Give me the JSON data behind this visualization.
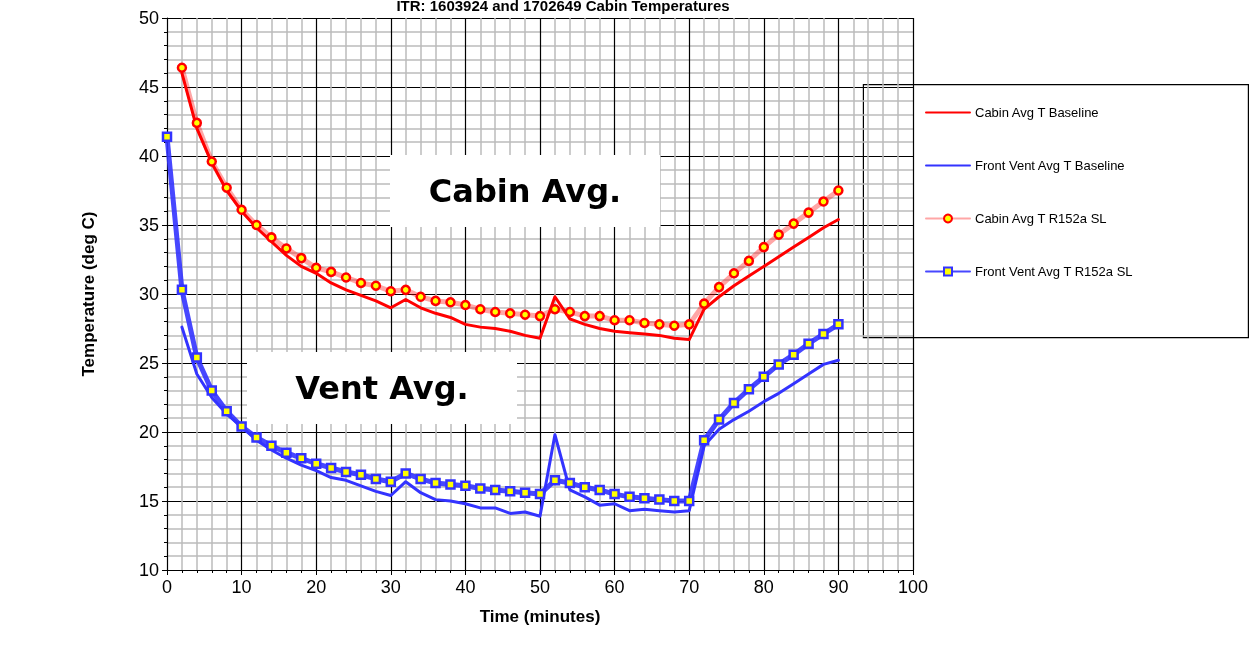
{
  "chart_data": {
    "type": "line",
    "title": "ITR: 1603924 and 1702649 Cabin Temperatures",
    "xlabel": "Time (minutes)",
    "ylabel": "Temperature (deg C)",
    "x": [
      0,
      2,
      4,
      6,
      8,
      10,
      12,
      14,
      16,
      18,
      20,
      22,
      24,
      26,
      28,
      30,
      32,
      34,
      36,
      38,
      40,
      42,
      44,
      46,
      48,
      50,
      52,
      54,
      56,
      58,
      60,
      62,
      64,
      66,
      68,
      70,
      72,
      74,
      76,
      78,
      80,
      82,
      84,
      86,
      88,
      90
    ],
    "series": [
      {
        "name": "Cabin Avg T Baseline",
        "color": "#ff0000",
        "marker": "none",
        "values": [
          null,
          46,
          42,
          39.5,
          37.5,
          36,
          34.8,
          33.8,
          32.8,
          32,
          31.5,
          30.8,
          30.3,
          29.9,
          29.5,
          29.0,
          29.6,
          29.0,
          28.6,
          28.3,
          27.8,
          27.6,
          27.5,
          27.3,
          27.0,
          26.8,
          29.8,
          28.2,
          27.8,
          27.5,
          27.3,
          27.2,
          27.1,
          27.0,
          26.8,
          26.7,
          28.9,
          29.8,
          30.6,
          31.3,
          32.0,
          32.7,
          33.4,
          34.1,
          34.8,
          35.4
        ]
      },
      {
        "name": "Front Vent Avg T Baseline",
        "color": "#3333ff",
        "marker": "none",
        "values": [
          null,
          27.6,
          24.2,
          22.5,
          21.3,
          20.4,
          19.4,
          18.7,
          18.1,
          17.6,
          17.2,
          16.7,
          16.5,
          16.1,
          15.7,
          15.4,
          16.4,
          15.6,
          15.1,
          15.0,
          14.8,
          14.5,
          14.5,
          14.1,
          14.2,
          13.9,
          19.8,
          15.8,
          15.3,
          14.7,
          14.8,
          14.3,
          14.4,
          14.3,
          14.2,
          14.3,
          19.0,
          20.2,
          20.9,
          21.5,
          22.2,
          22.8,
          23.5,
          24.2,
          24.9,
          25.2
        ]
      },
      {
        "name": "Cabin Avg T R152a SL",
        "color": "#ff0000",
        "marker": "circle",
        "values": [
          null,
          46.4,
          42.4,
          39.6,
          37.7,
          36.1,
          35.0,
          34.1,
          33.3,
          32.6,
          31.9,
          31.6,
          31.2,
          30.8,
          30.6,
          30.2,
          30.3,
          29.8,
          29.5,
          29.4,
          29.2,
          28.9,
          28.7,
          28.6,
          28.5,
          28.4,
          28.9,
          28.7,
          28.4,
          28.4,
          28.1,
          28.1,
          27.9,
          27.8,
          27.7,
          27.8,
          29.3,
          30.5,
          31.5,
          32.4,
          33.4,
          34.3,
          35.1,
          35.9,
          36.7,
          37.5
        ]
      },
      {
        "name": "Front Vent Avg T R152a SL",
        "color": "#3333ff",
        "marker": "square",
        "values": [
          41.4,
          30.3,
          25.4,
          23.0,
          21.5,
          20.4,
          19.6,
          19.0,
          18.5,
          18.1,
          17.7,
          17.4,
          17.1,
          16.9,
          16.6,
          16.4,
          17.0,
          16.6,
          16.3,
          16.2,
          16.1,
          15.9,
          15.8,
          15.7,
          15.6,
          15.5,
          16.5,
          16.3,
          16.0,
          15.8,
          15.5,
          15.3,
          15.2,
          15.1,
          15.0,
          15.0,
          19.4,
          20.9,
          22.1,
          23.1,
          24.0,
          24.9,
          25.6,
          26.4,
          27.1,
          27.8
        ]
      }
    ],
    "annotations": [
      "Cabin Avg.",
      "Vent Avg."
    ],
    "xlim": [
      0,
      100
    ],
    "xticks": [
      0,
      10,
      20,
      30,
      40,
      50,
      60,
      70,
      80,
      90,
      100
    ],
    "ylim": [
      10,
      50
    ],
    "yticks": [
      10,
      15,
      20,
      25,
      30,
      35,
      40,
      45,
      50
    ],
    "grid": true,
    "legend": "right"
  }
}
